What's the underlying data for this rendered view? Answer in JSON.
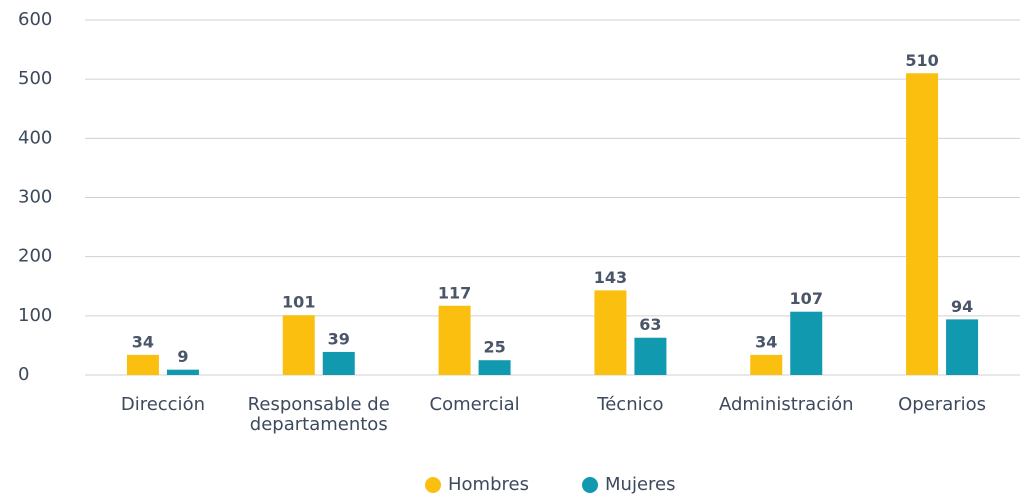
{
  "chart_data": {
    "type": "bar",
    "categories": [
      "Dirección",
      "Responsable de departamentos",
      "Comercial",
      "Técnico",
      "Administración",
      "Operarios"
    ],
    "series": [
      {
        "name": "Hombres",
        "color": "#fbbf10",
        "values": [
          34,
          101,
          117,
          143,
          34,
          510
        ]
      },
      {
        "name": "Mujeres",
        "color": "#1199b0",
        "values": [
          9,
          39,
          25,
          63,
          107,
          94
        ]
      }
    ],
    "ylim": [
      0,
      600
    ],
    "yticks": [
      0,
      100,
      200,
      300,
      400,
      500,
      600
    ],
    "grid": true,
    "legend": "bottom"
  }
}
